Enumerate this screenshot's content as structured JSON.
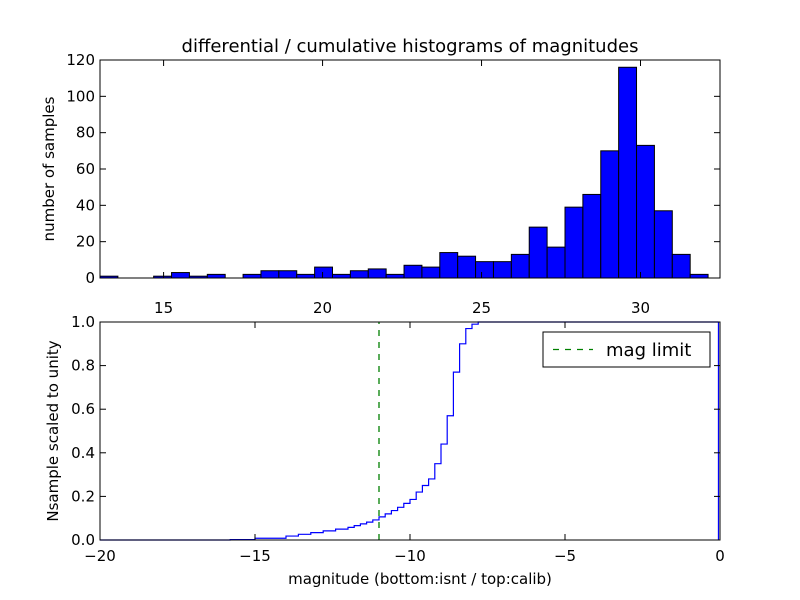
{
  "figure": {
    "title": "differential / cumulative histograms of magnitudes"
  },
  "chart_data": [
    {
      "type": "bar",
      "name": "top-histogram",
      "title": "differential / cumulative histograms of magnitudes",
      "xlabel": "",
      "ylabel": "number of samples",
      "xlim": [
        13.0,
        32.5
      ],
      "ylim": [
        0,
        120
      ],
      "x_ticks": [
        15,
        20,
        25,
        30
      ],
      "x_tick_labels": [
        "15",
        "20",
        "25",
        "30"
      ],
      "x_tick_position": "top-axis labels above lower panel",
      "y_ticks": [
        0,
        20,
        40,
        60,
        80,
        100,
        120
      ],
      "y_tick_labels": [
        "0",
        "20",
        "40",
        "60",
        "80",
        "100",
        "120"
      ],
      "bin_width": 0.5625,
      "bin_start": 13.0,
      "values": [
        1,
        0,
        0,
        1,
        3,
        1,
        2,
        0,
        2,
        4,
        4,
        2,
        6,
        2,
        4,
        5,
        2,
        7,
        6,
        14,
        12,
        9,
        9,
        13,
        28,
        17,
        39,
        46,
        70,
        116,
        73,
        37,
        13,
        2
      ],
      "bar_color": "#0000ff",
      "grid": false
    },
    {
      "type": "line",
      "name": "bottom-cumulative",
      "xlabel": "magnitude (bottom:isnt / top:calib)",
      "ylabel": "Nsample scaled to unity",
      "xlim": [
        -20,
        0
      ],
      "ylim": [
        0.0,
        1.0
      ],
      "x_ticks": [
        -20,
        -15,
        -10,
        -5,
        0
      ],
      "x_tick_labels": [
        "−20",
        "−15",
        "−10",
        "−5",
        "0"
      ],
      "y_ticks": [
        0.0,
        0.2,
        0.4,
        0.6,
        0.8,
        1.0
      ],
      "y_tick_labels": [
        "0.0",
        "0.2",
        "0.4",
        "0.6",
        "0.8",
        "1.0"
      ],
      "series": [
        {
          "color": "#0000ff",
          "drawstyle": "steps",
          "x": [
            -20.0,
            -15.8,
            -15.0,
            -14.0,
            -13.6,
            -13.2,
            -12.8,
            -12.4,
            -12.0,
            -11.8,
            -11.6,
            -11.4,
            -11.2,
            -11.0,
            -10.8,
            -10.6,
            -10.4,
            -10.2,
            -10.0,
            -9.8,
            -9.6,
            -9.4,
            -9.2,
            -9.0,
            -8.8,
            -8.6,
            -8.4,
            -8.2,
            -8.0,
            -7.8,
            -7.4,
            -6.5,
            -0.05
          ],
          "y": [
            0.0,
            0.002,
            0.008,
            0.018,
            0.026,
            0.034,
            0.042,
            0.05,
            0.058,
            0.066,
            0.074,
            0.082,
            0.092,
            0.106,
            0.12,
            0.135,
            0.15,
            0.168,
            0.186,
            0.22,
            0.25,
            0.28,
            0.35,
            0.44,
            0.57,
            0.77,
            0.9,
            0.97,
            0.99,
            1.0,
            1.0,
            1.0,
            1.0
          ]
        },
        {
          "name": "mag limit",
          "color": "#008000",
          "style": "dashed",
          "x": [
            -11.0,
            -11.0
          ],
          "y": [
            0.0,
            1.0
          ]
        }
      ],
      "legend": {
        "entries": [
          "mag limit"
        ],
        "location": "upper-right"
      },
      "grid": false
    }
  ]
}
